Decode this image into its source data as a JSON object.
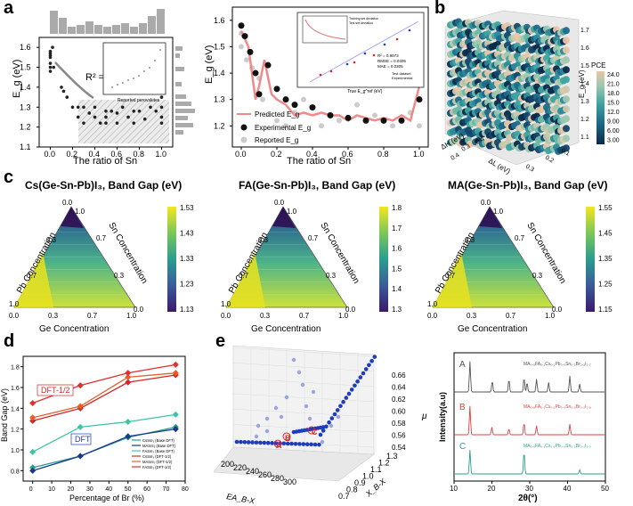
{
  "panel_labels": {
    "a": "a",
    "b": "b",
    "c": "c",
    "d": "d",
    "e": "e"
  },
  "colors": {
    "dark": "#1a1a1a",
    "gray": "#9e9e9e",
    "pink": "#e06a6a",
    "hatch": "#cfcfcf",
    "blue": "#1f3bbf",
    "red": "#d62728",
    "teal": "#2a9d8f"
  },
  "chart_data": [
    {
      "type": "scatter",
      "id": "a-left",
      "xlabel": "The ratio of Sn",
      "ylabel": "E_g (eV)",
      "xlim": [
        -0.1,
        1.1
      ],
      "ylim": [
        1.1,
        1.65
      ],
      "x_ticks": [
        "0.0",
        "0.2",
        "0.4",
        "0.6",
        "0.8",
        "1.0"
      ],
      "y_ticks": [
        "1.1",
        "1.2",
        "1.3",
        "1.4",
        "1.5",
        "1.6"
      ],
      "annotation": "R² = 0.705",
      "inset_xlabel": "Reported perovskites",
      "points": [
        [
          0,
          1.58
        ],
        [
          0,
          1.57
        ],
        [
          0,
          1.56
        ],
        [
          0,
          1.55
        ],
        [
          0,
          1.52
        ],
        [
          0,
          1.5
        ],
        [
          0,
          1.48
        ],
        [
          0.02,
          1.6
        ],
        [
          0.03,
          1.5
        ],
        [
          0.1,
          1.4
        ],
        [
          0.12,
          1.38
        ],
        [
          0.15,
          1.35
        ],
        [
          0.2,
          1.3
        ],
        [
          0.25,
          1.25
        ],
        [
          0.25,
          1.3
        ],
        [
          0.3,
          1.22
        ],
        [
          0.3,
          1.3
        ],
        [
          0.35,
          1.27
        ],
        [
          0.4,
          1.25
        ],
        [
          0.4,
          1.3
        ],
        [
          0.45,
          1.22
        ],
        [
          0.5,
          1.25
        ],
        [
          0.5,
          1.28
        ],
        [
          0.5,
          1.22
        ],
        [
          0.55,
          1.28
        ],
        [
          0.6,
          1.27
        ],
        [
          0.6,
          1.22
        ],
        [
          0.65,
          1.3
        ],
        [
          0.7,
          1.25
        ],
        [
          0.75,
          1.28
        ],
        [
          0.75,
          1.22
        ],
        [
          0.8,
          1.28
        ],
        [
          0.85,
          1.24
        ],
        [
          0.9,
          1.3
        ],
        [
          0.95,
          1.28
        ],
        [
          1.0,
          1.3
        ],
        [
          1.0,
          1.25
        ],
        [
          1.0,
          1.22
        ],
        [
          1.0,
          1.35
        ]
      ]
    },
    {
      "type": "line",
      "id": "a-right",
      "xlabel": "The ratio of Sn",
      "ylabel": "E_g (eV)",
      "xlim": [
        -0.05,
        1.05
      ],
      "ylim": [
        1.12,
        1.65
      ],
      "x_ticks": [
        "0.0",
        "0.2",
        "0.4",
        "0.6",
        "0.8",
        "1.0"
      ],
      "y_ticks": [
        "1.2",
        "1.3",
        "1.4",
        "1.5",
        "1.6"
      ],
      "legend": [
        "Predicted E_g",
        "Experimental E_g",
        "Reported E_g"
      ],
      "inset_text": [
        "R² = 0.9073",
        "RMSE = 0.0405",
        "MAE = 0.0305"
      ],
      "inset_legend": [
        "Test dataset",
        "Experimental"
      ],
      "inset_xlabel": "True E_g^ref (eV)",
      "inset2_legend": [
        "Training set deviation",
        "Test set deviation"
      ],
      "predicted_x": [
        0,
        0.04,
        0.08,
        0.1,
        0.13,
        0.17,
        0.2,
        0.25,
        0.3,
        0.35,
        0.4,
        0.45,
        0.5,
        0.55,
        0.6,
        0.65,
        0.7,
        0.75,
        0.8,
        0.85,
        0.9,
        0.95,
        1.0,
        1.02
      ],
      "predicted_y": [
        1.56,
        1.5,
        1.3,
        1.35,
        1.45,
        1.32,
        1.3,
        1.28,
        1.24,
        1.25,
        1.24,
        1.25,
        1.24,
        1.24,
        1.22,
        1.24,
        1.23,
        1.22,
        1.23,
        1.22,
        1.24,
        1.22,
        1.35,
        1.6
      ],
      "experimental": [
        [
          0,
          1.58
        ],
        [
          0.02,
          1.54
        ],
        [
          0.05,
          1.48
        ],
        [
          0.08,
          1.4
        ],
        [
          0.1,
          1.32
        ],
        [
          0.15,
          1.43
        ],
        [
          0.2,
          1.34
        ],
        [
          0.25,
          1.3
        ],
        [
          0.3,
          1.28
        ],
        [
          0.4,
          1.27
        ],
        [
          0.5,
          1.24
        ],
        [
          0.6,
          1.23
        ],
        [
          0.7,
          1.22
        ],
        [
          0.8,
          1.22
        ],
        [
          0.9,
          1.22
        ],
        [
          1.0,
          1.3
        ]
      ],
      "reported": [
        [
          0,
          1.55
        ],
        [
          0,
          1.5
        ],
        [
          0.03,
          1.45
        ],
        [
          0.06,
          1.42
        ],
        [
          0.1,
          1.38
        ],
        [
          0.12,
          1.3
        ],
        [
          0.2,
          1.22
        ],
        [
          0.25,
          1.2
        ],
        [
          0.3,
          1.25
        ],
        [
          0.35,
          1.3
        ],
        [
          0.45,
          1.2
        ],
        [
          0.55,
          1.22
        ],
        [
          0.65,
          1.28
        ],
        [
          0.75,
          1.24
        ],
        [
          0.85,
          1.2
        ],
        [
          0.95,
          1.25
        ],
        [
          1.0,
          1.2
        ]
      ]
    },
    {
      "type": "scatter3d",
      "id": "b",
      "zlabel": "E_g (eV)",
      "xlabel": "ΔL (eV)",
      "ylabel": "ΔH (eV)",
      "colorbar_title": "PCE",
      "colorbar_ticks": [
        "24.0",
        "21.0",
        "18.0",
        "15.0",
        "12.0",
        "9.00",
        "6.00",
        "3.00"
      ],
      "z_ticks": [
        "1.7",
        "1.6",
        "1.5",
        "1.4",
        "1.3",
        "1.2",
        "1.1"
      ],
      "x_ticks": [
        "0.4",
        "0.3",
        "0.2",
        "0.1"
      ],
      "y_ticks": [
        "0.4",
        "0.3",
        "0.2",
        "0.1"
      ]
    },
    {
      "type": "heatmap",
      "id": "c1",
      "title": "Cs(Ge-Sn-Pb)I₃, Band Gap (eV)",
      "axes": {
        "bottom": "Ge Concentration",
        "left": "Pb Concentration",
        "right": "Sn Concentration"
      },
      "tick_labels": {
        "top_a": "0.0",
        "top_b": "1.0",
        "left_mid": "0.3",
        "left_low": "0.7",
        "right_mid": "0.7",
        "right_low": "0.3",
        "bottom_l": "1.0",
        "bottom_r": "0.0",
        "bottom_x": [
          "0.0",
          "0.3",
          "0.7",
          "1.0"
        ],
        "corner_l": "1.0",
        "corner_r": "0.0"
      },
      "colorbar_ticks": [
        "1.53",
        "1.43",
        "1.33",
        "1.23",
        "1.13"
      ]
    },
    {
      "type": "heatmap",
      "id": "c2",
      "title": "FA(Ge-Sn-Pb)I₃, Band Gap (eV)",
      "axes": {
        "bottom": "Ge Concentration",
        "left": "Pb Concentration",
        "right": "Sn Concentration"
      },
      "colorbar_ticks": [
        "1.8",
        "1.7",
        "1.6",
        "1.5",
        "1.4",
        "1.3"
      ]
    },
    {
      "type": "heatmap",
      "id": "c3",
      "title": "MA(Ge-Sn-Pb)I₃, Band Gap (eV)",
      "axes": {
        "bottom": "Ge Concentration",
        "left": "Pb Concentration",
        "right": "Sn Concentration"
      },
      "colorbar_ticks": [
        "1.55",
        "1.45",
        "1.35",
        "1.25",
        "1.15"
      ]
    },
    {
      "type": "line",
      "id": "d",
      "xlabel": "Percentage of Br (%)",
      "ylabel": "Band Gap (eV)",
      "xlim": [
        -5,
        80
      ],
      "ylim": [
        0.7,
        1.9
      ],
      "x_ticks": [
        "0",
        "10",
        "20",
        "30",
        "40",
        "50",
        "60",
        "70",
        "80"
      ],
      "y_ticks": [
        "0.8",
        "1.0",
        "1.2",
        "1.4",
        "1.6",
        "1.8"
      ],
      "annotations": [
        "DFT-1/2",
        "DFT"
      ],
      "x": [
        0,
        25,
        50,
        75
      ],
      "series": [
        {
          "name": "CsSnI₃ (Base DFT)",
          "values": [
            0.83,
            0.94,
            1.12,
            1.22
          ],
          "color": "#2a9d8f"
        },
        {
          "name": "MASnI₃ (Base DFT)",
          "values": [
            0.8,
            0.94,
            1.13,
            1.2
          ],
          "color": "#1a3a8a"
        },
        {
          "name": "FASnI₃ (Base DFT)",
          "values": [
            0.98,
            1.22,
            1.27,
            1.34
          ],
          "color": "#3cc4a8"
        },
        {
          "name": "CsSnI₃ (DFT-1/2)",
          "values": [
            1.28,
            1.4,
            1.65,
            1.72
          ],
          "color": "#d62728"
        },
        {
          "name": "MASnI₃ (DFT-1/2)",
          "values": [
            1.31,
            1.42,
            1.7,
            1.74
          ],
          "color": "#e35f2a"
        },
        {
          "name": "FASnI₃ (DFT-1/2)",
          "values": [
            1.45,
            1.62,
            1.74,
            1.82
          ],
          "color": "#e03030"
        }
      ]
    },
    {
      "type": "scatter3d",
      "id": "e-left",
      "xlabel": "EA_B-X",
      "ylabel": "X_B-X",
      "zlabel": "μ",
      "x_ticks": [
        "200",
        "220",
        "240",
        "260",
        "280",
        "300"
      ],
      "y_ticks": [
        "0.7",
        "0.8",
        "0.9",
        "1.0",
        "1.1",
        "1.2",
        "1.3"
      ],
      "z_ticks": [
        "0.66",
        "0.64",
        "0.62",
        "0.60",
        "0.58",
        "0.56",
        "0.54"
      ],
      "point_labels": [
        "A",
        "B",
        "C"
      ]
    },
    {
      "type": "line",
      "id": "e-right",
      "xlabel": "2θ(°)",
      "ylabel": "Intensity(a.u)",
      "xlim": [
        10,
        50
      ],
      "x_ticks": [
        "10",
        "20",
        "30",
        "40",
        "50"
      ],
      "series": [
        {
          "name": "A",
          "label": "MA₀.₉FA₀.₁Cs₀.₁Pb₀.₅Sn₀.₅Br₀.₃I₂.₇",
          "color": "#555555",
          "peaks": [
            [
              14.2,
              0.95
            ],
            [
              20.1,
              0.35
            ],
            [
              24.5,
              0.4
            ],
            [
              28.5,
              0.45
            ],
            [
              29.3,
              0.3
            ],
            [
              31.8,
              0.4
            ],
            [
              35,
              0.3
            ],
            [
              40.6,
              0.5
            ],
            [
              43.2,
              0.25
            ]
          ]
        },
        {
          "name": "B",
          "label": "MA₀.₈FA₀.₁Cs₀.₁Pb₀.₅Sn₀.₅Br₀.₂I₂.₈",
          "color": "#e04040",
          "peaks": [
            [
              14.2,
              0.95
            ],
            [
              20,
              0.25
            ],
            [
              24.5,
              0.2
            ],
            [
              28.5,
              0.4
            ],
            [
              31.8,
              0.3
            ],
            [
              40.6,
              0.35
            ]
          ]
        },
        {
          "name": "C",
          "label": "MA₀.₈FA₀.₁Cs₀.₁Pb₀.₅Sn₀.₅Br₀.₁I₂.₉",
          "color": "#2a9d8f",
          "peaks": [
            [
              14.2,
              0.9
            ],
            [
              28.5,
              0.85
            ],
            [
              43.2,
              0.15
            ]
          ]
        }
      ]
    }
  ]
}
